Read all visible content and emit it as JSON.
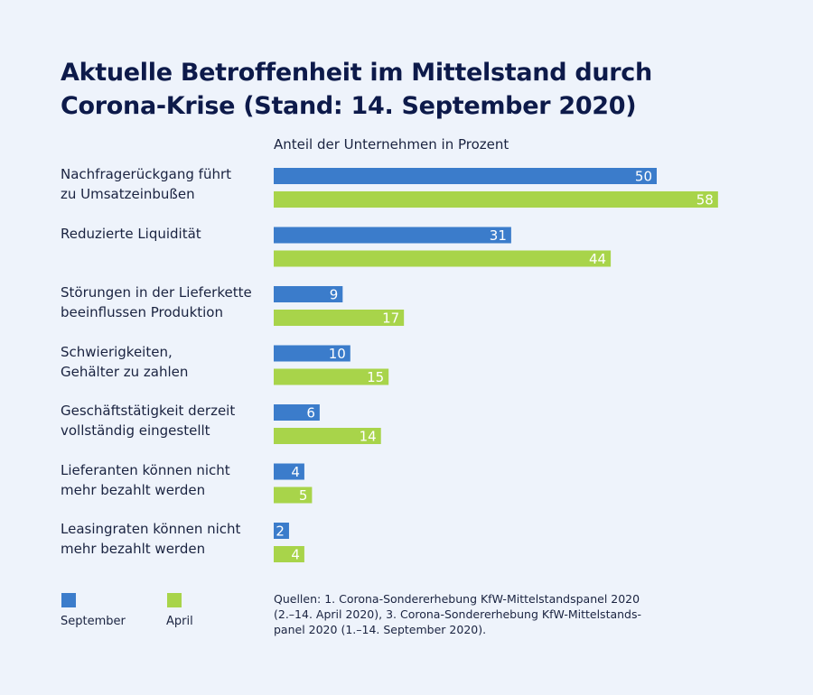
{
  "chart_data": {
    "type": "bar",
    "orientation": "horizontal",
    "title": "Aktuelle Betroffenheit im Mittelstand durch\nCorona-Krise (Stand: 14. September 2020)",
    "subtitle": "Anteil der Unternehmen in Prozent",
    "categories": [
      "Nachfragerückgang führt\nzu Umsatzeinbußen",
      "Reduzierte Liquidität",
      "Störungen in der Lieferkette\nbeeinflussen Produktion",
      "Schwierigkeiten,\nGehälter zu zahlen",
      "Geschäftstätigkeit derzeit\nvollständig eingestellt",
      "Lieferanten können nicht\nmehr bezahlt werden",
      "Leasingraten können nicht\nmehr bezahlt werden"
    ],
    "series": [
      {
        "name": "September",
        "color": "#3b7ccb",
        "values": [
          50,
          31,
          9,
          10,
          6,
          4,
          2
        ]
      },
      {
        "name": "April",
        "color": "#a8d44a",
        "values": [
          58,
          44,
          17,
          15,
          14,
          5,
          4
        ]
      }
    ],
    "source": "Quellen: 1. Corona-Sondererhebung KfW-Mittelstandspanel 2020\n(2.–14. April 2020), 3. Corona-Sondererhebung KfW-Mittelstands-\npanel 2020 (1.–14. September 2020)."
  }
}
